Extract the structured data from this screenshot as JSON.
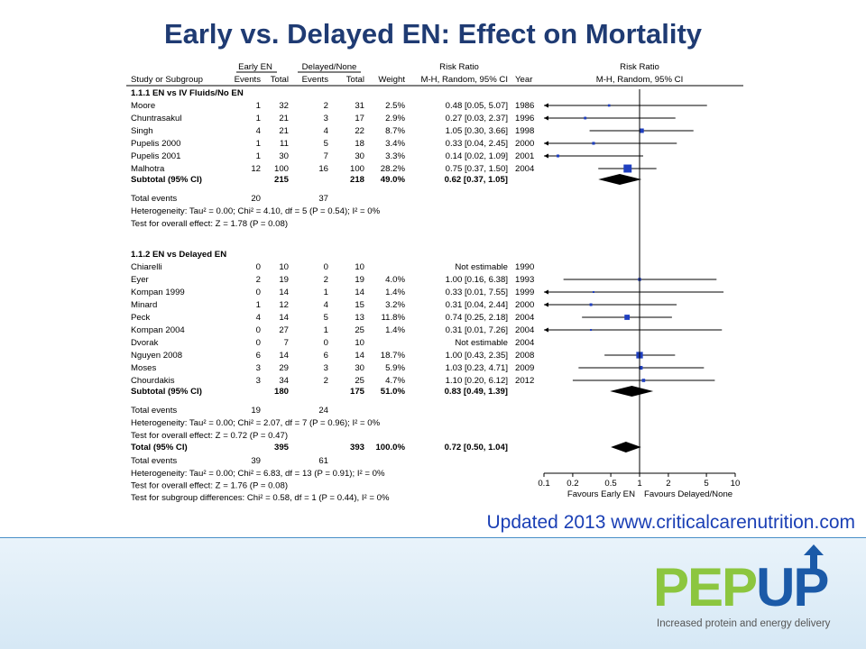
{
  "title": "Early vs. Delayed EN: Effect on Mortality",
  "updated_note": "Updated 2013 www.criticalcarenutrition.com",
  "logo": {
    "text": "PEPUP",
    "part1": "PEP",
    "part2": "UP",
    "tagline": "Increased protein and energy delivery",
    "colors": {
      "pep": "#8cc63f",
      "up": "#1b5aa8"
    }
  },
  "table": {
    "group_headers": {
      "experimental": "Early EN",
      "control": "Delayed/None",
      "rr": "Risk Ratio",
      "plot": "Risk Ratio"
    },
    "col_headers": {
      "study": "Study or Subgroup",
      "events1": "Events",
      "total1": "Total",
      "events2": "Events",
      "total2": "Total",
      "weight": "Weight",
      "rr": "M-H, Random, 95% CI",
      "year": "Year",
      "plot": "M-H, Random, 95% CI"
    }
  },
  "chart_data": {
    "type": "forest",
    "scale": "log",
    "xlim": [
      0.1,
      10
    ],
    "ticks": [
      "0.1",
      "0.2",
      "0.5",
      "1",
      "2",
      "5",
      "10"
    ],
    "tick_values": [
      0.1,
      0.2,
      0.5,
      1,
      2,
      5,
      10
    ],
    "favours_left": "Favours Early EN",
    "favours_right": "Favours Delayed/None",
    "groups": [
      {
        "label": "1.1.1 EN vs IV Fluids/No EN",
        "studies": [
          {
            "name": "Moore",
            "e1": "1",
            "t1": "32",
            "e2": "2",
            "t2": "31",
            "weight": "2.5%",
            "ci": "0.48 [0.05, 5.07]",
            "year": "1986",
            "rr": 0.48,
            "lo": 0.05,
            "hi": 5.07,
            "w": 2.5
          },
          {
            "name": "Chuntrasakul",
            "e1": "1",
            "t1": "21",
            "e2": "3",
            "t2": "17",
            "weight": "2.9%",
            "ci": "0.27 [0.03, 2.37]",
            "year": "1996",
            "rr": 0.27,
            "lo": 0.03,
            "hi": 2.37,
            "w": 2.9
          },
          {
            "name": "Singh",
            "e1": "4",
            "t1": "21",
            "e2": "4",
            "t2": "22",
            "weight": "8.7%",
            "ci": "1.05 [0.30, 3.66]",
            "year": "1998",
            "rr": 1.05,
            "lo": 0.3,
            "hi": 3.66,
            "w": 8.7
          },
          {
            "name": "Pupelis 2000",
            "e1": "1",
            "t1": "11",
            "e2": "5",
            "t2": "18",
            "weight": "3.4%",
            "ci": "0.33 [0.04, 2.45]",
            "year": "2000",
            "rr": 0.33,
            "lo": 0.04,
            "hi": 2.45,
            "w": 3.4
          },
          {
            "name": "Pupelis 2001",
            "e1": "1",
            "t1": "30",
            "e2": "7",
            "t2": "30",
            "weight": "3.3%",
            "ci": "0.14 [0.02, 1.09]",
            "year": "2001",
            "rr": 0.14,
            "lo": 0.02,
            "hi": 1.09,
            "w": 3.3
          },
          {
            "name": "Malhotra",
            "e1": "12",
            "t1": "100",
            "e2": "16",
            "t2": "100",
            "weight": "28.2%",
            "ci": "0.75 [0.37, 1.50]",
            "year": "2004",
            "rr": 0.75,
            "lo": 0.37,
            "hi": 1.5,
            "w": 28.2
          }
        ],
        "subtotal": {
          "label": "Subtotal (95% CI)",
          "t1": "215",
          "t2": "218",
          "weight": "49.0%",
          "ci": "0.62 [0.37, 1.05]",
          "rr": 0.62,
          "lo": 0.37,
          "hi": 1.05
        },
        "total_events": {
          "label": "Total events",
          "e1": "20",
          "e2": "37"
        },
        "heterogeneity": "Heterogeneity: Tau² = 0.00; Chi² = 4.10, df = 5 (P = 0.54); I² = 0%",
        "overall": "Test for overall effect: Z = 1.78 (P = 0.08)"
      },
      {
        "label": "1.1.2 EN vs Delayed EN",
        "studies": [
          {
            "name": "Chiarelli",
            "e1": "0",
            "t1": "10",
            "e2": "0",
            "t2": "10",
            "weight": "",
            "ci": "Not estimable",
            "year": "1990",
            "rr": null,
            "lo": null,
            "hi": null,
            "w": 0
          },
          {
            "name": "Eyer",
            "e1": "2",
            "t1": "19",
            "e2": "2",
            "t2": "19",
            "weight": "4.0%",
            "ci": "1.00 [0.16, 6.38]",
            "year": "1993",
            "rr": 1.0,
            "lo": 0.16,
            "hi": 6.38,
            "w": 4.0
          },
          {
            "name": "Kompan 1999",
            "e1": "0",
            "t1": "14",
            "e2": "1",
            "t2": "14",
            "weight": "1.4%",
            "ci": "0.33 [0.01, 7.55]",
            "year": "1999",
            "rr": 0.33,
            "lo": 0.01,
            "hi": 7.55,
            "w": 1.4
          },
          {
            "name": "Minard",
            "e1": "1",
            "t1": "12",
            "e2": "4",
            "t2": "15",
            "weight": "3.2%",
            "ci": "0.31 [0.04, 2.44]",
            "year": "2000",
            "rr": 0.31,
            "lo": 0.04,
            "hi": 2.44,
            "w": 3.2
          },
          {
            "name": "Peck",
            "e1": "4",
            "t1": "14",
            "e2": "5",
            "t2": "13",
            "weight": "11.8%",
            "ci": "0.74 [0.25, 2.18]",
            "year": "2004",
            "rr": 0.74,
            "lo": 0.25,
            "hi": 2.18,
            "w": 11.8
          },
          {
            "name": "Kompan 2004",
            "e1": "0",
            "t1": "27",
            "e2": "1",
            "t2": "25",
            "weight": "1.4%",
            "ci": "0.31 [0.01, 7.26]",
            "year": "2004",
            "rr": 0.31,
            "lo": 0.01,
            "hi": 7.26,
            "w": 1.4
          },
          {
            "name": "Dvorak",
            "e1": "0",
            "t1": "7",
            "e2": "0",
            "t2": "10",
            "weight": "",
            "ci": "Not estimable",
            "year": "2004",
            "rr": null,
            "lo": null,
            "hi": null,
            "w": 0
          },
          {
            "name": "Nguyen 2008",
            "e1": "6",
            "t1": "14",
            "e2": "6",
            "t2": "14",
            "weight": "18.7%",
            "ci": "1.00 [0.43, 2.35]",
            "year": "2008",
            "rr": 1.0,
            "lo": 0.43,
            "hi": 2.35,
            "w": 18.7
          },
          {
            "name": "Moses",
            "e1": "3",
            "t1": "29",
            "e2": "3",
            "t2": "30",
            "weight": "5.9%",
            "ci": "1.03 [0.23, 4.71]",
            "year": "2009",
            "rr": 1.03,
            "lo": 0.23,
            "hi": 4.71,
            "w": 5.9
          },
          {
            "name": "Chourdakis",
            "e1": "3",
            "t1": "34",
            "e2": "2",
            "t2": "25",
            "weight": "4.7%",
            "ci": "1.10 [0.20, 6.12]",
            "year": "2012",
            "rr": 1.1,
            "lo": 0.2,
            "hi": 6.12,
            "w": 4.7
          }
        ],
        "subtotal": {
          "label": "Subtotal (95% CI)",
          "t1": "180",
          "t2": "175",
          "weight": "51.0%",
          "ci": "0.83 [0.49, 1.39]",
          "rr": 0.83,
          "lo": 0.49,
          "hi": 1.39
        },
        "total_events": {
          "label": "Total events",
          "e1": "19",
          "e2": "24"
        },
        "heterogeneity": "Heterogeneity: Tau² = 0.00; Chi² = 2.07, df = 7 (P = 0.96); I² = 0%",
        "overall": "Test for overall effect: Z = 0.72 (P = 0.47)"
      }
    ],
    "total": {
      "label": "Total (95% CI)",
      "t1": "395",
      "t2": "393",
      "weight": "100.0%",
      "ci": "0.72 [0.50, 1.04]",
      "rr": 0.72,
      "lo": 0.5,
      "hi": 1.04
    },
    "total_events": {
      "label": "Total events",
      "e1": "39",
      "e2": "61"
    },
    "footer": [
      "Heterogeneity: Tau² = 0.00; Chi² = 6.83, df = 13 (P = 0.91); I² = 0%",
      "Test for overall effect: Z = 1.76 (P = 0.08)",
      "Test for subgroup differences: Chi² = 0.58, df = 1 (P = 0.44), I² = 0%"
    ],
    "colors": {
      "box": "#1f3fbf",
      "diamond": "#000000",
      "line": "#000000"
    }
  }
}
